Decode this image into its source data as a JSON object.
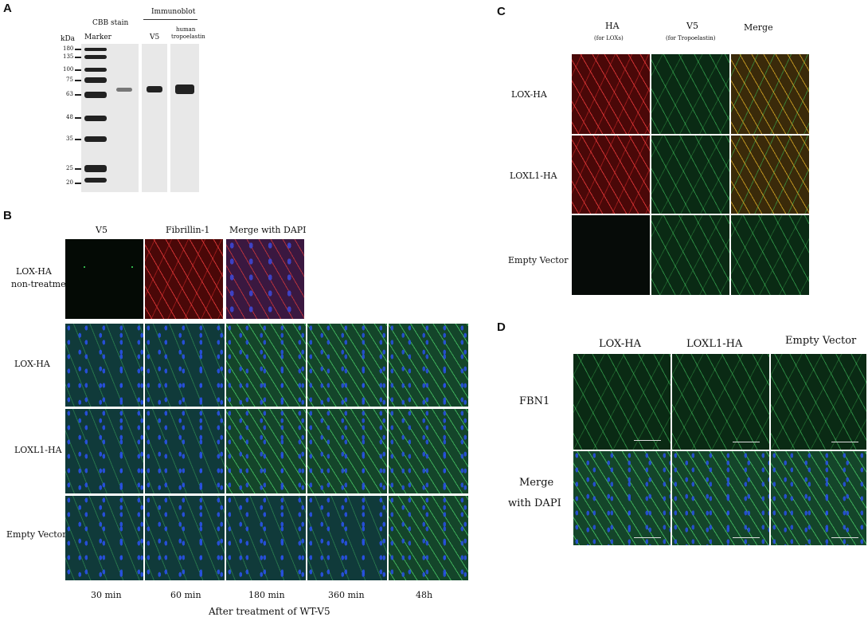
{
  "panelA": {
    "letter": "A",
    "cbb": "CBB stain",
    "immunoblot": "Immunoblot",
    "marker": "Marker",
    "kda": "kDa",
    "v5": "V5",
    "human": "human",
    "tropoelastin": "tropoelastin",
    "ladder": [
      "180",
      "135",
      "100",
      "75",
      "63",
      "48",
      "35",
      "25",
      "20"
    ]
  },
  "panelB": {
    "letter": "B",
    "cols": [
      "V5",
      "Fibrillin-1",
      "Merge with DAPI"
    ],
    "row0a": "LOX-HA",
    "row0b": "non-treatment",
    "rows": [
      "LOX-HA",
      "LOXL1-HA",
      "Empty Vector"
    ],
    "times": [
      "30 min",
      "60 min",
      "180 min",
      "360 min",
      "48h"
    ],
    "caption": "After treatment of WT-V5"
  },
  "panelC": {
    "letter": "C",
    "col1": "HA",
    "col1sub": "(for LOXs)",
    "col2": "V5",
    "col2sub": "(for Tropoelastin)",
    "col3": "Merge",
    "rows": [
      "LOX-HA",
      "LOXL1-HA",
      "Empty Vector"
    ]
  },
  "panelD": {
    "letter": "D",
    "cols": [
      "LOX-HA",
      "LOXL1-HA",
      "Empty Vector"
    ],
    "row1": "FBN1",
    "row2a": "Merge",
    "row2b": "with DAPI"
  }
}
